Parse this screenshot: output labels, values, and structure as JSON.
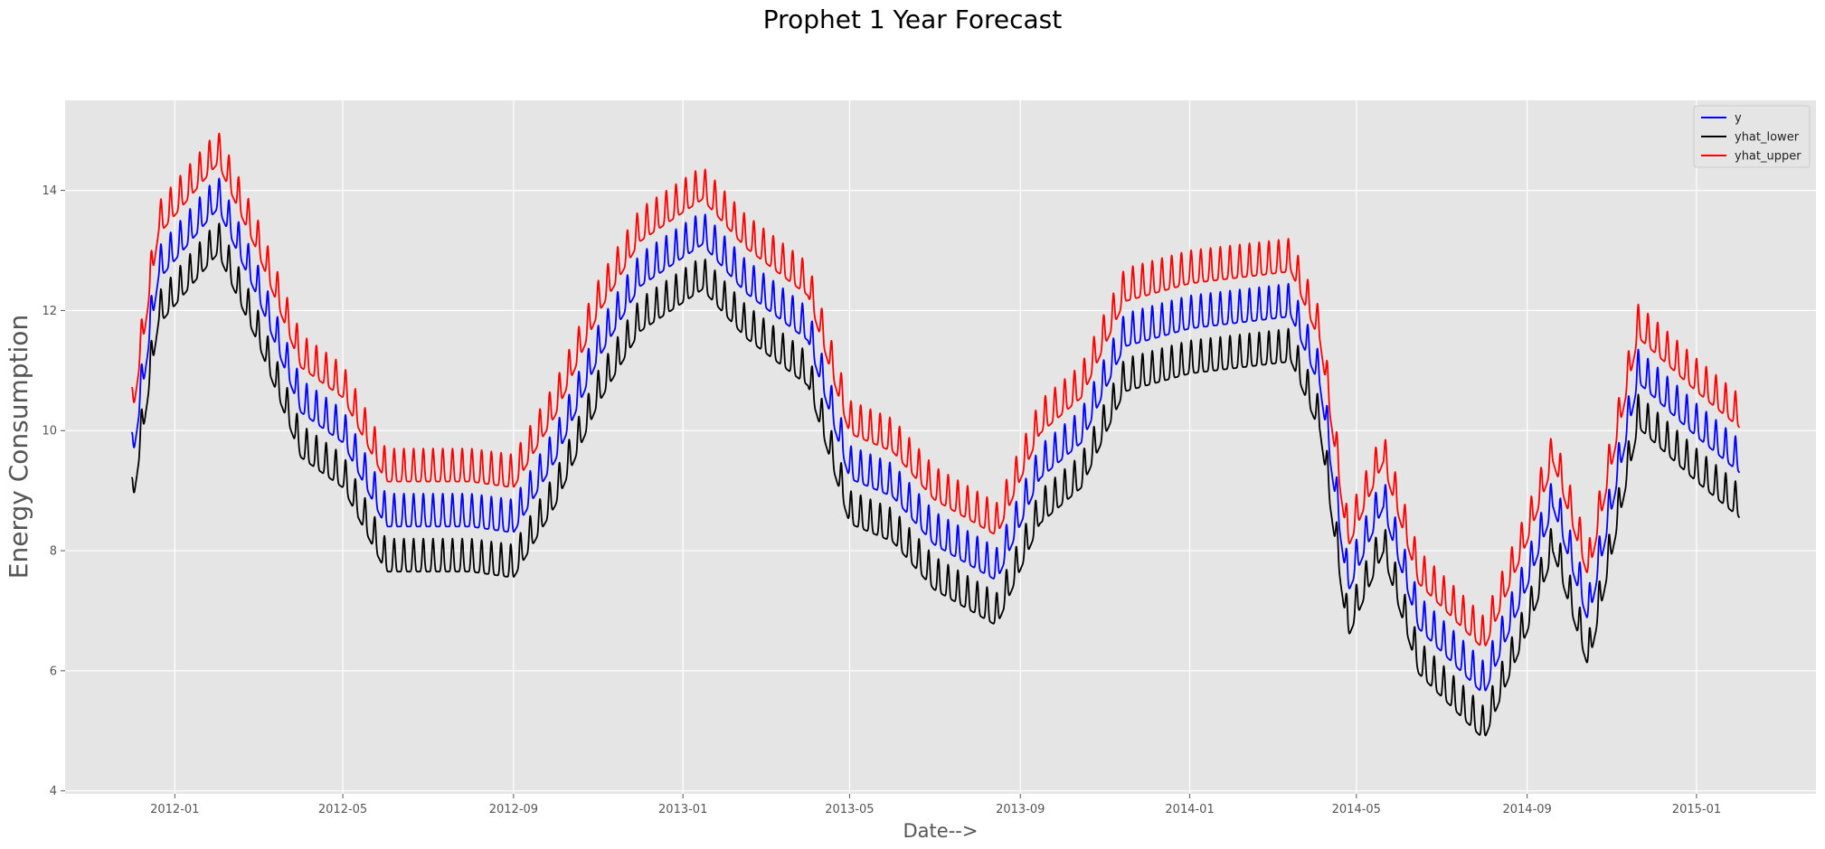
{
  "chart_data": {
    "type": "line",
    "title": "Prophet 1 Year Forecast",
    "xlabel": "Date-->",
    "ylabel": "Energy Consumption",
    "x_start": "2011-12-01",
    "x_end": "2015-02-01",
    "xlim": [
      "2011-10-14",
      "2015-03-28"
    ],
    "ylim": [
      3.95,
      15.5
    ],
    "x_ticks": [
      "2012-01",
      "2012-05",
      "2012-09",
      "2013-01",
      "2013-05",
      "2013-09",
      "2014-01",
      "2014-05",
      "2014-09",
      "2015-01"
    ],
    "y_ticks": [
      4,
      6,
      8,
      10,
      12,
      14
    ],
    "grid": true,
    "legend_position": "top-right",
    "background_color": "#e5e5e5",
    "weekly_amplitude": 0.55,
    "trend_anchors": [
      {
        "date": "2011-12-01",
        "value": 9.5
      },
      {
        "date": "2011-12-20",
        "value": 12.6
      },
      {
        "date": "2012-02-01",
        "value": 13.8
      },
      {
        "date": "2012-03-01",
        "value": 12.3
      },
      {
        "date": "2012-04-01",
        "value": 10.4
      },
      {
        "date": "2012-05-01",
        "value": 9.9
      },
      {
        "date": "2012-06-01",
        "value": 8.5
      },
      {
        "date": "2012-08-01",
        "value": 8.5
      },
      {
        "date": "2012-09-01",
        "value": 8.4
      },
      {
        "date": "2012-10-01",
        "value": 9.6
      },
      {
        "date": "2012-11-01",
        "value": 11.3
      },
      {
        "date": "2012-12-01",
        "value": 12.5
      },
      {
        "date": "2013-01-15",
        "value": 13.2
      },
      {
        "date": "2013-02-15",
        "value": 12.4
      },
      {
        "date": "2013-04-01",
        "value": 11.6
      },
      {
        "date": "2013-05-01",
        "value": 9.3
      },
      {
        "date": "2013-06-01",
        "value": 9.0
      },
      {
        "date": "2013-07-01",
        "value": 8.2
      },
      {
        "date": "2013-08-15",
        "value": 7.6
      },
      {
        "date": "2013-09-15",
        "value": 9.3
      },
      {
        "date": "2013-10-15",
        "value": 9.9
      },
      {
        "date": "2013-11-15",
        "value": 11.5
      },
      {
        "date": "2014-01-01",
        "value": 11.8
      },
      {
        "date": "2014-03-15",
        "value": 12.0
      },
      {
        "date": "2014-04-05",
        "value": 10.8
      },
      {
        "date": "2014-04-25",
        "value": 7.4
      },
      {
        "date": "2014-05-20",
        "value": 8.8
      },
      {
        "date": "2014-06-15",
        "value": 6.8
      },
      {
        "date": "2014-08-01",
        "value": 5.7
      },
      {
        "date": "2014-09-01",
        "value": 7.5
      },
      {
        "date": "2014-09-20",
        "value": 8.8
      },
      {
        "date": "2014-10-15",
        "value": 6.9
      },
      {
        "date": "2014-11-20",
        "value": 10.9
      },
      {
        "date": "2015-01-01",
        "value": 10.0
      },
      {
        "date": "2015-02-01",
        "value": 9.4
      }
    ],
    "series": [
      {
        "name": "y",
        "color": "#0000ff",
        "offset_from_trend": 0.0
      },
      {
        "name": "yhat_lower",
        "color": "#000000",
        "offset_from_trend": -0.75
      },
      {
        "name": "yhat_upper",
        "color": "#ff0000",
        "offset_from_trend": 0.75
      }
    ]
  }
}
